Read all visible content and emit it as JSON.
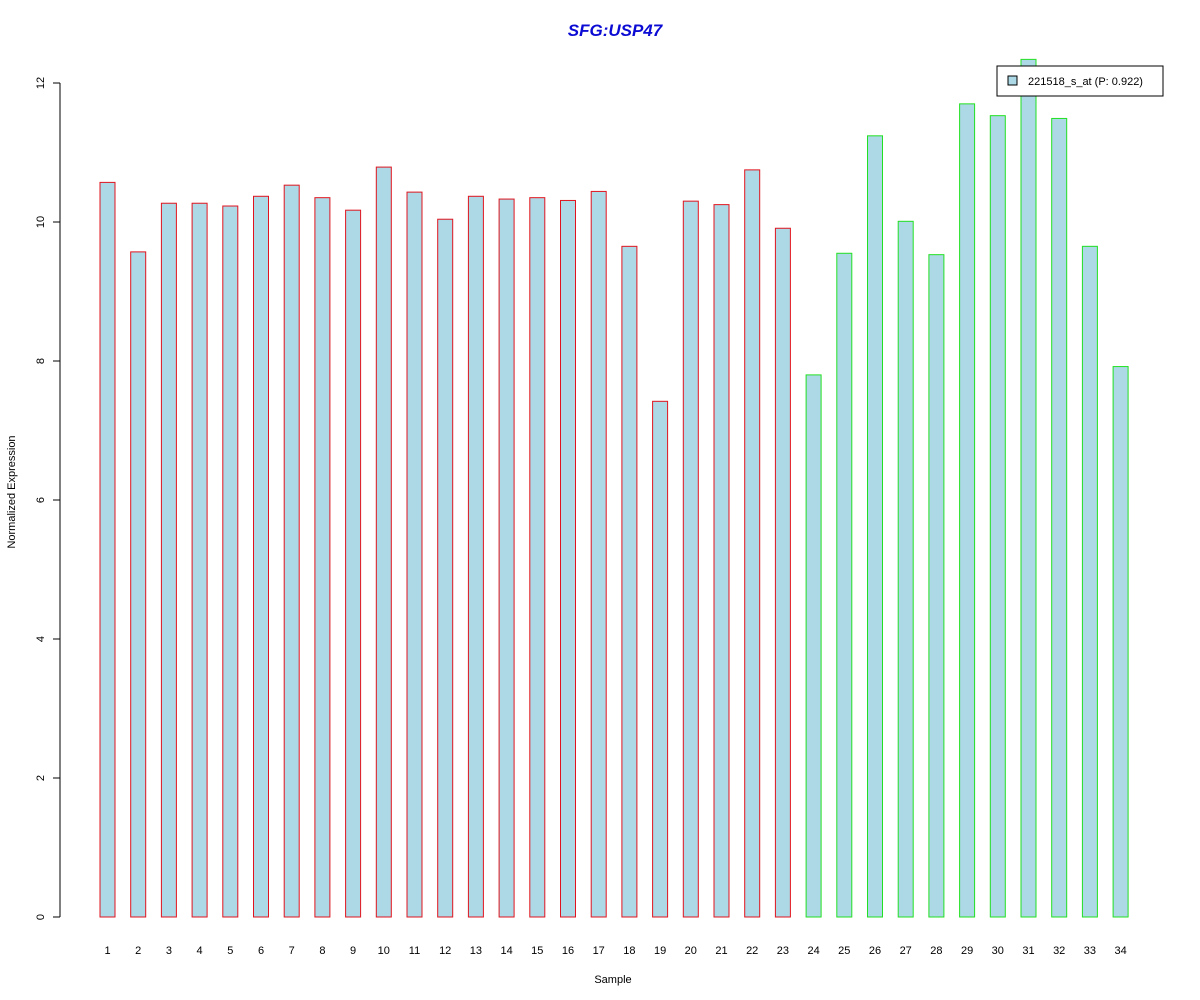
{
  "chart_data": {
    "type": "bar",
    "title": "SFG:USP47",
    "xlabel": "Sample",
    "ylabel": "Normalized Expression",
    "ylim": [
      0,
      12
    ],
    "yticks": [
      0,
      2,
      4,
      6,
      8,
      10,
      12
    ],
    "grid": false,
    "legend_position": "top-right",
    "categories": [
      "1",
      "2",
      "3",
      "4",
      "5",
      "6",
      "7",
      "8",
      "9",
      "10",
      "11",
      "12",
      "13",
      "14",
      "15",
      "16",
      "17",
      "18",
      "19",
      "20",
      "21",
      "22",
      "23",
      "24",
      "25",
      "26",
      "27",
      "28",
      "29",
      "30",
      "31",
      "32",
      "33",
      "34"
    ],
    "series": [
      {
        "name": "221518_s_at (P: 0.922)",
        "values": [
          10.57,
          9.57,
          10.27,
          10.27,
          10.23,
          10.37,
          10.53,
          10.35,
          10.17,
          10.79,
          10.43,
          10.04,
          10.37,
          10.33,
          10.35,
          10.31,
          10.44,
          9.65,
          7.42,
          10.3,
          10.25,
          10.75,
          9.91,
          7.8,
          9.55,
          11.24,
          10.01,
          9.53,
          11.7,
          11.53,
          12.34,
          11.49,
          9.65,
          7.92
        ]
      }
    ],
    "bar_groups": [
      {
        "from": 1,
        "to": 23,
        "border_color": "#e0141e"
      },
      {
        "from": 24,
        "to": 34,
        "border_color": "#22e022"
      }
    ],
    "colors": {
      "title": "#0b0bd4",
      "bar_fill": "#add8e6",
      "axis": "#000000"
    }
  }
}
